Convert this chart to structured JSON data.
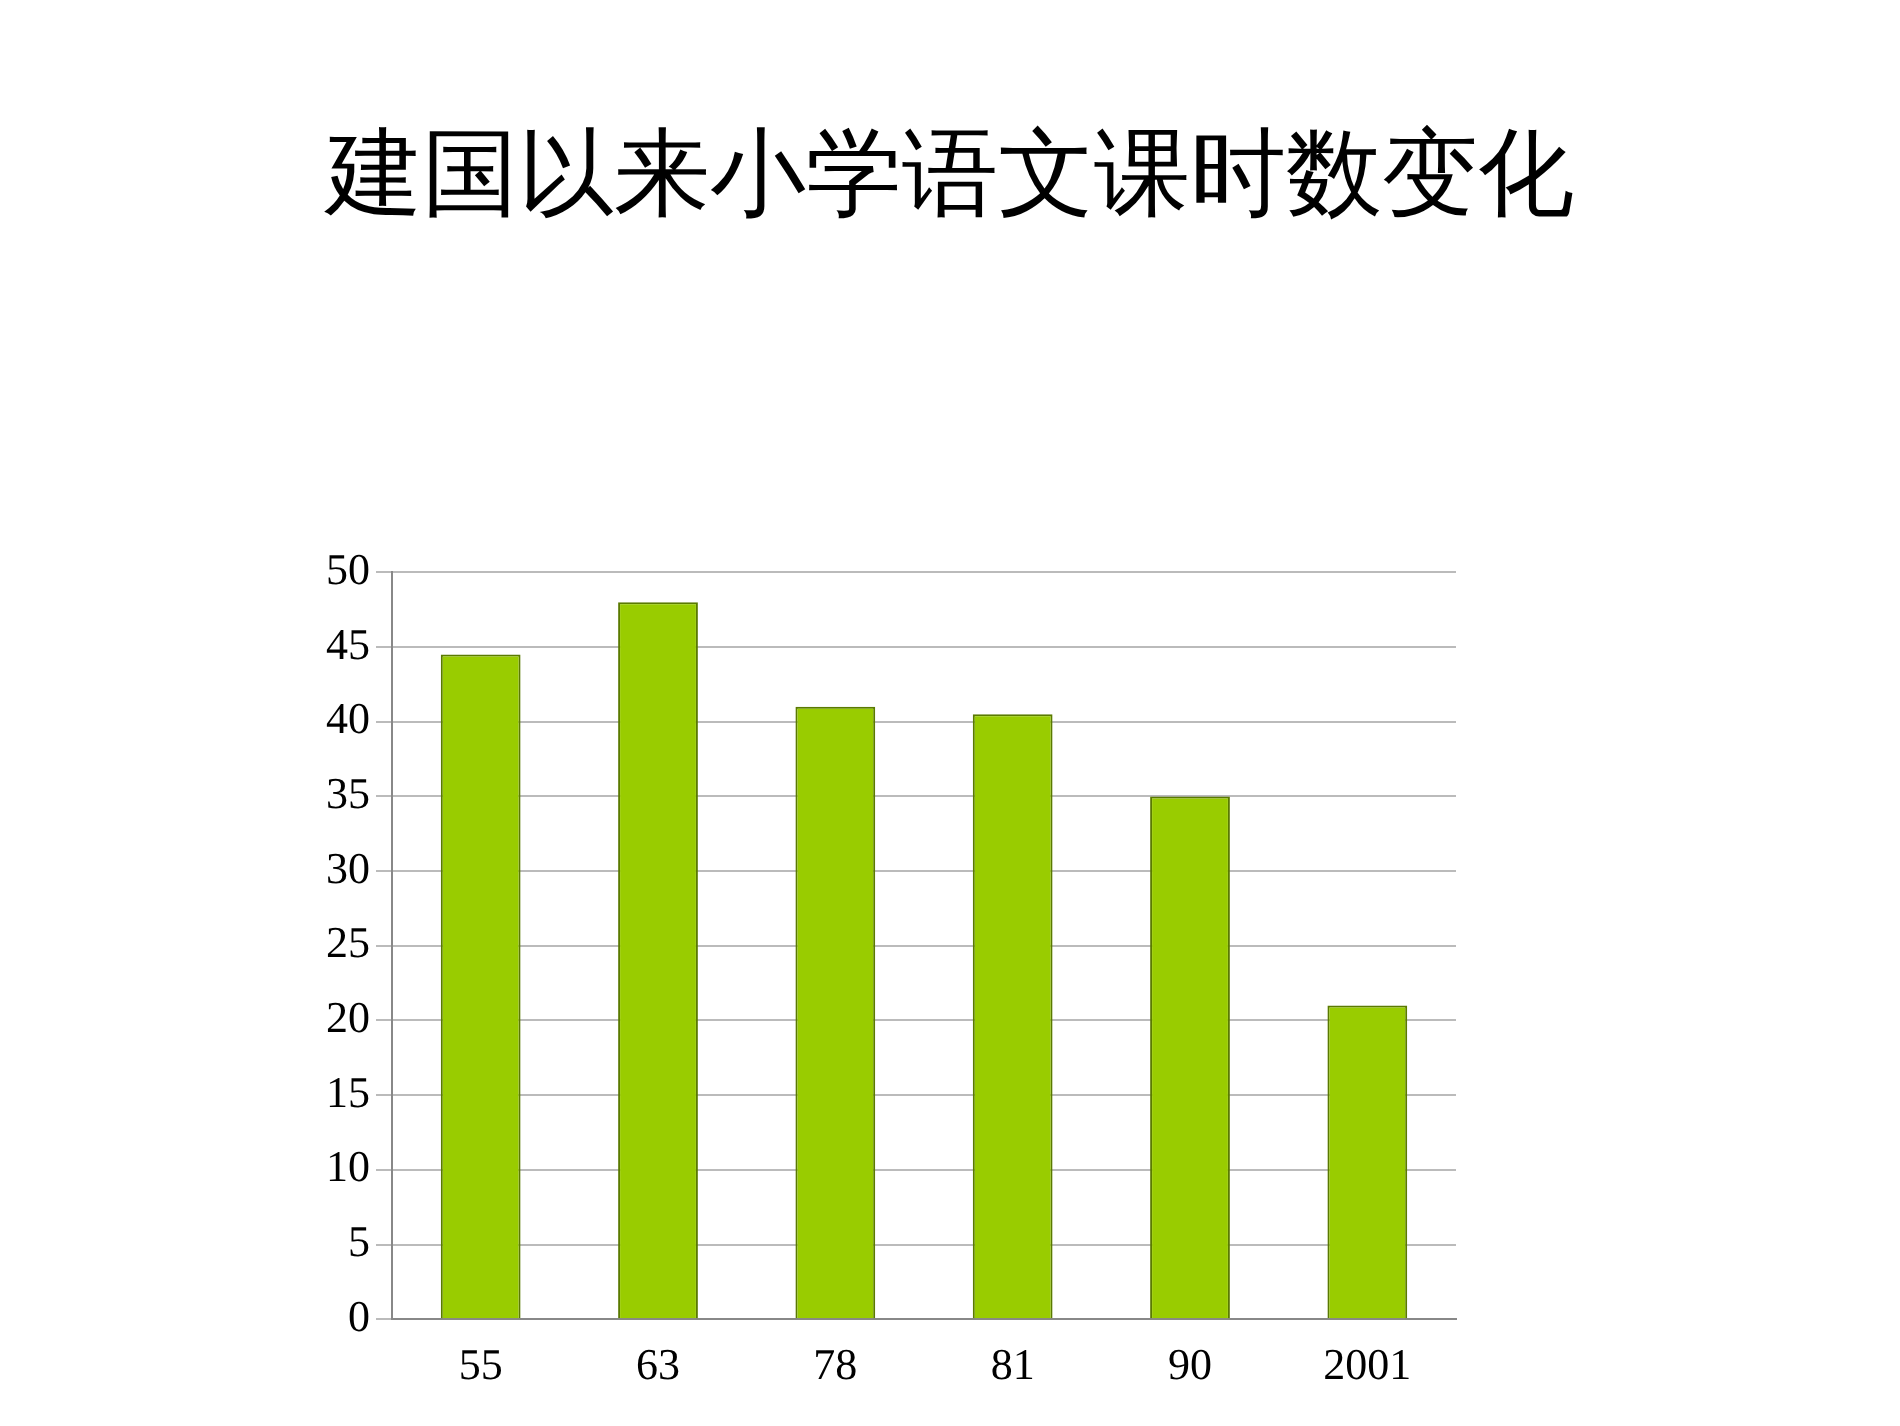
{
  "chart_data": {
    "type": "bar",
    "title": "建国以来小学语文课时数变化",
    "categories": [
      "55",
      "63",
      "78",
      "81",
      "90",
      "2001"
    ],
    "values": [
      44.5,
      48,
      41,
      40.5,
      35,
      21
    ],
    "color": "#99cc00",
    "ylim": [
      0,
      50
    ],
    "yticks": [
      0,
      5,
      10,
      15,
      20,
      25,
      30,
      35,
      40,
      45,
      50
    ],
    "grid": "y"
  }
}
